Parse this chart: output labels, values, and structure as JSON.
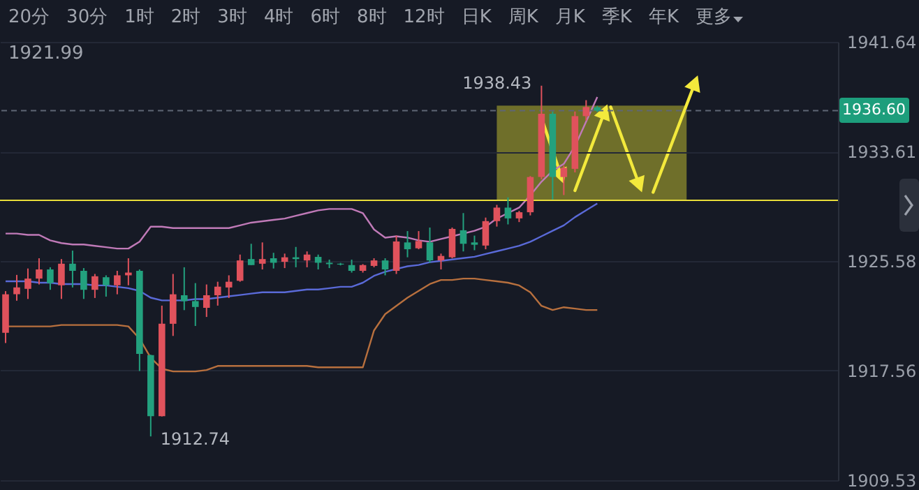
{
  "chart_data": {
    "type": "candlestick",
    "categories": [
      null,
      null,
      null,
      null,
      null,
      null,
      null,
      null,
      null,
      null,
      null,
      null,
      null,
      null,
      null,
      null,
      null,
      null,
      null,
      null,
      null,
      null,
      null,
      null,
      null,
      null,
      null,
      null,
      null,
      null,
      null,
      null,
      null,
      null,
      null,
      null,
      null,
      null,
      null,
      null,
      null,
      null,
      null,
      null,
      null,
      null,
      null,
      null,
      null,
      null,
      null,
      null,
      null,
      null
    ],
    "ohlc": [
      [
        1920.33,
        1923.38,
        1919.58,
        1923.15
      ],
      [
        1923.15,
        1924.57,
        1922.68,
        1923.65
      ],
      [
        1923.55,
        1925.04,
        1922.81,
        1924.3
      ],
      [
        1924.3,
        1925.79,
        1923.87,
        1924.97
      ],
      [
        1924.97,
        1925.13,
        1923.48,
        1923.97
      ],
      [
        1923.81,
        1925.73,
        1922.81,
        1925.39
      ],
      [
        1925.39,
        1926.35,
        1923.65,
        1924.87
      ],
      [
        1924.87,
        1925.07,
        1922.81,
        1923.48
      ],
      [
        1923.48,
        1924.64,
        1922.88,
        1924.47
      ],
      [
        1924.4,
        1924.54,
        1922.98,
        1923.81
      ],
      [
        1923.81,
        1924.87,
        1923.15,
        1924.54
      ],
      [
        1924.54,
        1925.79,
        1923.81,
        1924.74
      ],
      [
        1924.87,
        1924.97,
        1917.53,
        1918.79
      ],
      [
        1918.69,
        1918.72,
        1912.74,
        1914.22
      ],
      [
        1914.22,
        1922.32,
        1914.2,
        1920.99
      ],
      [
        1920.99,
        1924.64,
        1920.1,
        1923.15
      ],
      [
        1923.08,
        1925.13,
        1921.99,
        1922.65
      ],
      [
        1922.65,
        1923.97,
        1920.83,
        1922.22
      ],
      [
        1922.16,
        1923.87,
        1921.49,
        1923.08
      ],
      [
        1923.08,
        1924.07,
        1922.32,
        1923.71
      ],
      [
        1923.65,
        1924.54,
        1922.88,
        1924.07
      ],
      [
        1924.14,
        1926.06,
        1924.07,
        1925.63
      ],
      [
        1925.73,
        1926.85,
        1925.29,
        1925.29
      ],
      [
        1925.39,
        1926.95,
        1924.97,
        1925.73
      ],
      [
        1925.79,
        1926.19,
        1925.04,
        1925.46
      ],
      [
        1925.53,
        1926.13,
        1925.07,
        1925.86
      ],
      [
        1925.86,
        1926.62,
        1925.13,
        1925.73
      ],
      [
        1925.63,
        1926.29,
        1925.13,
        1926.06
      ],
      [
        1925.89,
        1926.06,
        1924.97,
        1925.46
      ],
      [
        1925.46,
        1925.69,
        1925.07,
        1925.36
      ],
      [
        1925.39,
        1925.45,
        1925.27,
        1925.33
      ],
      [
        1925.29,
        1925.69,
        1924.74,
        1924.87
      ],
      [
        1924.87,
        1925.36,
        1924.74,
        1925.29
      ],
      [
        1925.23,
        1925.79,
        1925.13,
        1925.63
      ],
      [
        1925.63,
        1925.79,
        1924.54,
        1924.97
      ],
      [
        1924.87,
        1927.45,
        1924.64,
        1927.02
      ],
      [
        1926.95,
        1927.78,
        1925.86,
        1926.45
      ],
      [
        1926.52,
        1927.78,
        1926.45,
        1927.05
      ],
      [
        1926.95,
        1928.04,
        1925.46,
        1925.63
      ],
      [
        1925.63,
        1926.13,
        1924.97,
        1925.96
      ],
      [
        1925.86,
        1928.04,
        1925.79,
        1927.94
      ],
      [
        1927.84,
        1929.1,
        1926.29,
        1926.85
      ],
      [
        1926.95,
        1927.45,
        1926.38,
        1926.78
      ],
      [
        1926.72,
        1928.77,
        1926.45,
        1928.51
      ],
      [
        1928.51,
        1929.7,
        1928.11,
        1929.5
      ],
      [
        1929.5,
        1930.25,
        1928.27,
        1928.71
      ],
      [
        1928.71,
        1929.26,
        1928.44,
        1929.16
      ],
      [
        1929.16,
        1931.81,
        1928.93,
        1931.74
      ],
      [
        1931.74,
        1938.43,
        1931.58,
        1936.37
      ],
      [
        1936.37,
        1936.54,
        1930.09,
        1931.74
      ],
      [
        1931.74,
        1932.58,
        1930.42,
        1932.41
      ],
      [
        1932.34,
        1936.54,
        1932.08,
        1936.2
      ],
      [
        1936.2,
        1937.37,
        1935.88,
        1936.87
      ],
      [
        1936.85,
        1936.95,
        1936.5,
        1936.6
      ]
    ],
    "series": [
      {
        "type": "line",
        "color": "#c07ab8",
        "values": [
          1927.6,
          1927.6,
          1927.5,
          1927.5,
          1927.1,
          1926.9,
          1926.8,
          1926.8,
          1926.7,
          1926.6,
          1926.5,
          1926.5,
          1927.0,
          1928.1,
          1928.1,
          1928.0,
          1928.0,
          1928.0,
          1928.0,
          1928.0,
          1928.0,
          1928.2,
          1928.4,
          1928.5,
          1928.6,
          1928.7,
          1928.9,
          1929.1,
          1929.3,
          1929.4,
          1929.4,
          1929.4,
          1929.1,
          1927.9,
          1927.3,
          1927.4,
          1927.3,
          1927.1,
          1927.0,
          1927.2,
          1927.4,
          1927.6,
          1927.8,
          1928.1,
          1928.7,
          1929.1,
          1929.5,
          1930.4,
          1931.4,
          1932.2,
          1932.7,
          1934.0,
          1935.8,
          1937.6
        ]
      },
      {
        "type": "line",
        "color": "#5a6ad8",
        "values": [
          1924.1,
          1924.1,
          1924.1,
          1924.0,
          1924.0,
          1923.9,
          1923.9,
          1923.9,
          1923.8,
          1923.8,
          1923.7,
          1923.6,
          1923.4,
          1922.9,
          1922.7,
          1922.7,
          1922.7,
          1922.8,
          1922.8,
          1922.9,
          1923.0,
          1923.1,
          1923.2,
          1923.3,
          1923.3,
          1923.3,
          1923.4,
          1923.5,
          1923.5,
          1923.6,
          1923.7,
          1923.7,
          1924.0,
          1924.5,
          1924.8,
          1925.0,
          1925.2,
          1925.3,
          1925.5,
          1925.6,
          1925.7,
          1925.8,
          1925.9,
          1926.1,
          1926.3,
          1926.5,
          1926.7,
          1927.0,
          1927.4,
          1927.8,
          1928.2,
          1928.8,
          1929.3,
          1929.8
        ]
      },
      {
        "type": "line",
        "color": "#b8703e",
        "values": [
          1920.8,
          1920.8,
          1920.8,
          1920.8,
          1920.8,
          1920.9,
          1920.9,
          1920.9,
          1920.9,
          1920.9,
          1920.9,
          1920.8,
          1919.9,
          1918.5,
          1917.7,
          1917.5,
          1917.5,
          1917.5,
          1917.6,
          1917.9,
          1917.9,
          1917.9,
          1917.9,
          1917.9,
          1917.9,
          1917.9,
          1917.9,
          1917.9,
          1917.8,
          1917.8,
          1917.8,
          1917.8,
          1917.8,
          1920.5,
          1921.7,
          1922.3,
          1922.9,
          1923.4,
          1923.9,
          1924.2,
          1924.2,
          1924.3,
          1924.3,
          1924.2,
          1924.1,
          1924.0,
          1923.8,
          1923.3,
          1922.3,
          1922.0,
          1922.2,
          1922.1,
          1922.0,
          1922.0
        ]
      }
    ],
    "ref_lines": [
      {
        "axis": "y",
        "value": 1930.03,
        "color": "#e8dd3a"
      },
      {
        "axis": "y",
        "value": 1936.6,
        "label": "1936.60",
        "color": "#5f6675",
        "line_style": "dashed"
      }
    ],
    "annotations": [
      "20分",
      "30分",
      "1时",
      "2时",
      "3时",
      "4时",
      "6时",
      "8时",
      "12时",
      "日K",
      "周K",
      "月K",
      "季K",
      "年K",
      "更多",
      "1921.99",
      "1938.43",
      "1912.74"
    ],
    "ylim": [
      1909.53,
      1941.64
    ],
    "yticks": [
      1909.53,
      1917.56,
      1925.58,
      1933.61,
      1941.64
    ],
    "grid": "y",
    "tick_labels": "y"
  }
}
